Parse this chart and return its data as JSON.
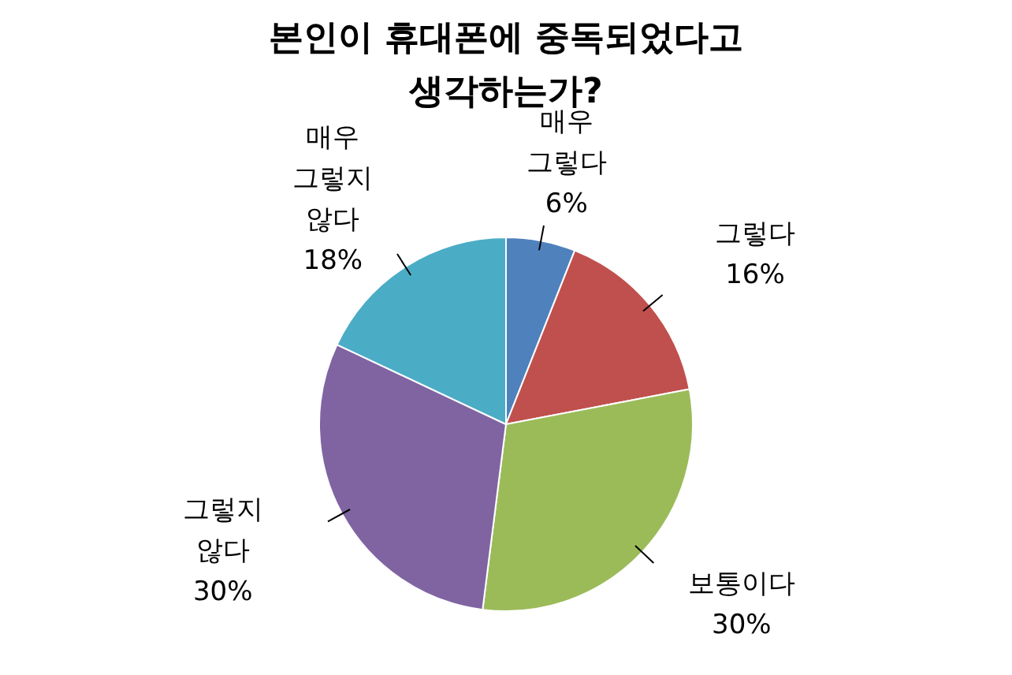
{
  "chart_data": {
    "type": "pie",
    "title": "본인이 휴대폰에 중독되었다고 생각하는가?",
    "categories": [
      "매우 그렇다",
      "그렇다",
      "보통이다",
      "그렇지 않다",
      "매우 그렇지 않다"
    ],
    "values": [
      6,
      16,
      30,
      30,
      18
    ],
    "value_labels": [
      "6%",
      "16%",
      "30%",
      "30%",
      "18%"
    ],
    "colors": [
      "#4f81bd",
      "#c0504d",
      "#9bbb59",
      "#8064a2",
      "#4bacc6"
    ],
    "legend": false
  }
}
